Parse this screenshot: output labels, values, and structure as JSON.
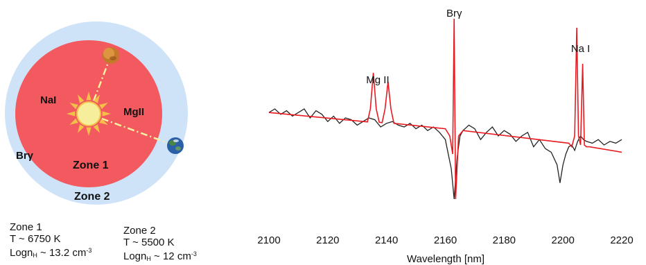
{
  "diagram": {
    "labels": {
      "zone1": "Zone 1",
      "zone2": "Zone 2",
      "nai": "NaI",
      "mgii": "MgII",
      "brg": "Brγ"
    },
    "colors": {
      "outer_zone": "#cfe3f8",
      "inner_zone": "#f25a5f",
      "sun": "#f6ee9a",
      "rays": "#f3c04a",
      "line": "#f6f1a0"
    },
    "legend": [
      {
        "title": "Zone 1",
        "temp": "T ~ 6750 K",
        "logn_prefix": "Logn",
        "logn_sub": "H",
        "logn_value": " ~ 13.2 cm",
        "logn_exp": "-3"
      },
      {
        "title": "Zone 2",
        "temp": "T ~ 5500 K",
        "logn_prefix": "Logn",
        "logn_sub": "H",
        "logn_value": " ~ 12 cm",
        "logn_exp": "-3"
      }
    ]
  },
  "chart_data": {
    "type": "line",
    "xlabel": "Wavelength [nm]",
    "ylabel": "",
    "xlim": [
      2100,
      2220
    ],
    "ylim": [
      0,
      1
    ],
    "x_ticks": [
      "2100",
      "2120",
      "2140",
      "2160",
      "2180",
      "2200",
      "2220"
    ],
    "grid": false,
    "annotations": [
      {
        "text": "Mg II",
        "x": 2137
      },
      {
        "text": "Brγ",
        "x": 2163
      },
      {
        "text": "Na I",
        "x": 2206
      }
    ],
    "series": [
      {
        "color": "#222222",
        "style": "observed",
        "x": [
          2100,
          2102,
          2104,
          2106,
          2108,
          2110,
          2112,
          2114,
          2116,
          2118,
          2120,
          2122,
          2124,
          2126,
          2128,
          2130,
          2132,
          2134,
          2136,
          2138,
          2140,
          2142,
          2144,
          2146,
          2148,
          2150,
          2152,
          2154,
          2156,
          2158,
          2160,
          2161,
          2162,
          2163,
          2164,
          2165,
          2166,
          2168,
          2170,
          2172,
          2174,
          2176,
          2178,
          2180,
          2182,
          2184,
          2186,
          2188,
          2190,
          2192,
          2194,
          2196,
          2198,
          2199,
          2200,
          2201,
          2202,
          2203,
          2204,
          2205,
          2206,
          2207,
          2208,
          2210,
          2212,
          2214,
          2216,
          2218,
          2220
        ],
        "y": [
          0.53,
          0.55,
          0.52,
          0.54,
          0.51,
          0.53,
          0.55,
          0.5,
          0.54,
          0.52,
          0.48,
          0.51,
          0.47,
          0.5,
          0.49,
          0.46,
          0.48,
          0.5,
          0.49,
          0.45,
          0.47,
          0.48,
          0.46,
          0.45,
          0.47,
          0.44,
          0.46,
          0.43,
          0.45,
          0.42,
          0.38,
          0.3,
          0.22,
          0.05,
          0.28,
          0.4,
          0.43,
          0.46,
          0.44,
          0.38,
          0.42,
          0.45,
          0.4,
          0.43,
          0.41,
          0.37,
          0.4,
          0.42,
          0.34,
          0.38,
          0.33,
          0.31,
          0.24,
          0.14,
          0.24,
          0.3,
          0.34,
          0.35,
          0.32,
          0.37,
          0.4,
          0.38,
          0.37,
          0.36,
          0.38,
          0.35,
          0.37,
          0.36,
          0.38
        ]
      },
      {
        "color": "#e8191f",
        "style": "model",
        "x": [
          2100,
          2133.5,
          2134.5,
          2135.5,
          2136.5,
          2137.5,
          2138.5,
          2139.5,
          2140.5,
          2141.5,
          2142.5,
          2160,
          2161.5,
          2162.5,
          2163,
          2163.5,
          2164.5,
          2166,
          2202,
          2203,
          2204,
          2204.7,
          2205.3,
          2206,
          2206.7,
          2207.3,
          2208,
          2209,
          2220
        ],
        "y": [
          0.53,
          0.478,
          0.55,
          0.75,
          0.55,
          0.476,
          0.474,
          0.55,
          0.7,
          0.55,
          0.47,
          0.44,
          0.4,
          0.3,
          1.05,
          0.05,
          0.4,
          0.43,
          0.36,
          0.34,
          0.4,
          1.0,
          0.4,
          0.35,
          0.8,
          0.35,
          0.34,
          0.34,
          0.31
        ]
      }
    ]
  }
}
